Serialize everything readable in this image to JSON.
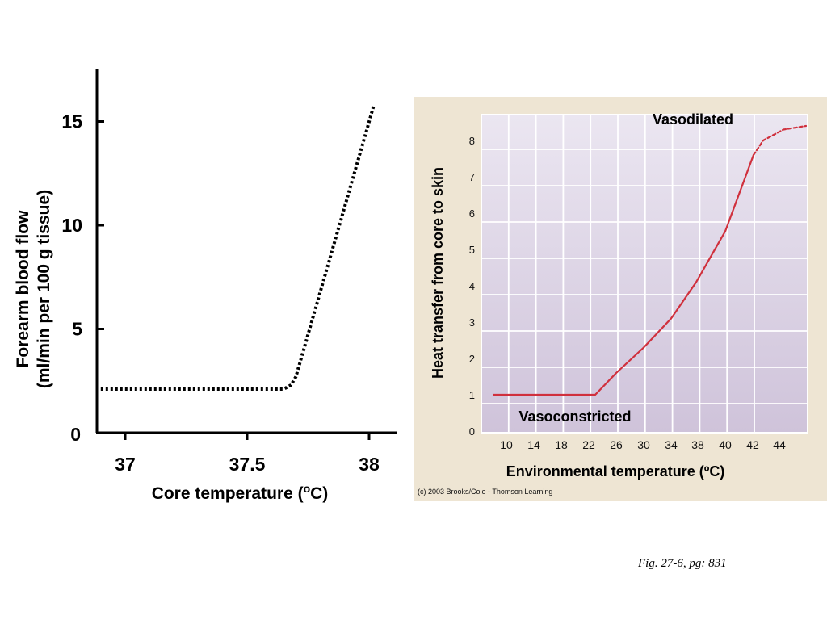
{
  "caption": "Fig. 27-6, pg: 831",
  "chart_data": [
    {
      "type": "line",
      "title": "",
      "xlabel": "Core temperature (",
      "xlabel_sup": "o",
      "xlabel_suffix": "C)",
      "ylabel_line1": "Forearm blood flow",
      "ylabel_line2": "(ml/min per 100 g tissue)",
      "xlim": [
        36.9,
        38.1
      ],
      "ylim": [
        0,
        17
      ],
      "x_ticks": [
        37,
        37.5,
        38
      ],
      "x_tick_labels": [
        "37",
        "37.5",
        "38"
      ],
      "y_ticks": [
        0,
        5,
        10,
        15
      ],
      "y_tick_labels": [
        "0",
        "5",
        "10",
        "15"
      ],
      "line_style": "dotted",
      "line_color": "#000000",
      "series": [
        {
          "x": [
            36.9,
            37.2,
            37.5,
            37.65,
            37.68,
            37.7,
            38.02
          ],
          "y": [
            2.1,
            2.1,
            2.1,
            2.1,
            2.3,
            2.7,
            15.8
          ]
        }
      ]
    },
    {
      "type": "line",
      "title": "",
      "xlabel": "Environmental temperature (ºC)",
      "ylabel": "Heat transfer from core to skin",
      "xlim": [
        6,
        48
      ],
      "ylim": [
        0,
        8.5
      ],
      "x_ticks": [
        10,
        14,
        18,
        22,
        26,
        30,
        34,
        38,
        40,
        42,
        44
      ],
      "y_ticks": [
        0,
        1,
        2,
        3,
        4,
        5,
        6,
        7,
        8
      ],
      "grid": true,
      "background": "#e3dcea",
      "panel_color": "#eee5d3",
      "line_color": "#d0303d",
      "annotations": [
        {
          "text": "Vasodilated"
        },
        {
          "text": "Vasoconstricted"
        }
      ],
      "copyright": "(c) 2003 Brooks/Cole - Thomson Learning",
      "series": [
        {
          "style": "solid",
          "x": [
            8,
            22.5,
            26,
            30,
            34,
            37.5,
            40,
            42.2
          ],
          "y": [
            1,
            1,
            1.6,
            2.3,
            3.1,
            4.1,
            5.5,
            7.6
          ]
        },
        {
          "style": "dashed",
          "x": [
            42.2,
            43,
            45,
            47
          ],
          "y": [
            7.6,
            8.0,
            8.3,
            8.4
          ]
        }
      ]
    }
  ]
}
